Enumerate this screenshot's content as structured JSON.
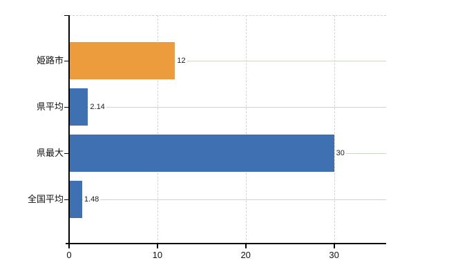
{
  "chart": {
    "background": "#ffffff",
    "axis_color": "#000000",
    "h_gridline_color": "#cbd5c8",
    "v_gridline_color": "#d2d2d2",
    "label_color": "#111111",
    "value_label_color": "#1a1a1a"
  },
  "chart_data": {
    "type": "bar",
    "orientation": "horizontal",
    "title": "",
    "categories": [
      "姫路市",
      "県平均",
      "県最大",
      "全国平均"
    ],
    "values": [
      12,
      2.14,
      30,
      1.48
    ],
    "value_labels": [
      "12",
      "2.14",
      "30",
      "1.48"
    ],
    "bar_colors": [
      "#ec9c3d",
      "#3f70b2",
      "#3f70b2",
      "#3f70b2"
    ],
    "x_ticks": [
      0,
      10,
      20,
      30
    ],
    "x_tick_labels": [
      "0",
      "10",
      "20",
      "30"
    ],
    "xlim": [
      0,
      35.9
    ],
    "grid": {
      "vertical": "dashed",
      "horizontal": "solid",
      "plot_top_border": "dashed"
    },
    "legend": null
  }
}
